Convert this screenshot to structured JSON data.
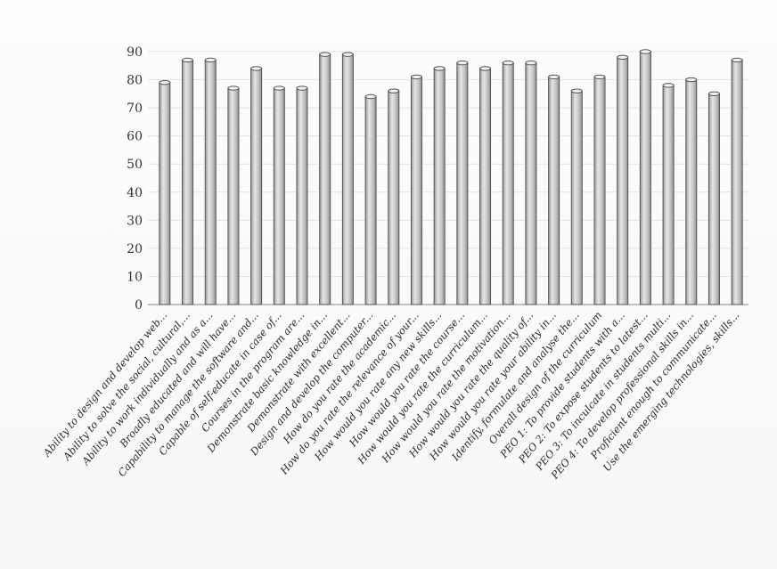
{
  "chart_data": {
    "type": "bar",
    "title": "",
    "xlabel": "",
    "ylabel": "",
    "ylim": [
      0,
      90
    ],
    "yticks": [
      0,
      10,
      20,
      30,
      40,
      50,
      60,
      70,
      80,
      90
    ],
    "grid": true,
    "legend": "none",
    "categories": [
      "Ability to design and develop web...",
      "Ability to solve the social, cultural,...",
      "Ability to work individually and as a...",
      "Broadly educated and will have...",
      "Capability to manage the software and...",
      "Capable of self-educate in case of...",
      "Courses in the program are...",
      "Demonstrate basic knowledge in...",
      "Demonstrate with excellent...",
      "Design and develop the computer...",
      "How do you rate the academic...",
      "How do you rate the relevance of your...",
      "How would you rate any new skills...",
      "How would you rate the course...",
      "How would you rate the curriculum...",
      "How would you rate the motivation...",
      "How would you rate the quality of...",
      "How would you rate your ability in...",
      "Identify, formulate and analyse the...",
      "Overall design of the curriculum",
      "PEO 1: To provide students with a...",
      "PEO 2: To expose students to latest...",
      "PEO 3: To inculcate in students multi...",
      "PEO 4: To develop professional skills in...",
      "Proficient enough to communicate...",
      "Use the emerging technologies, skills..."
    ],
    "values": [
      79,
      87,
      87,
      77,
      84,
      77,
      77,
      89,
      89,
      74,
      76,
      81,
      84,
      86,
      84,
      86,
      86,
      81,
      76,
      81,
      88,
      90,
      78,
      80,
      75,
      87
    ],
    "bar_color": "#c9c9c9"
  }
}
